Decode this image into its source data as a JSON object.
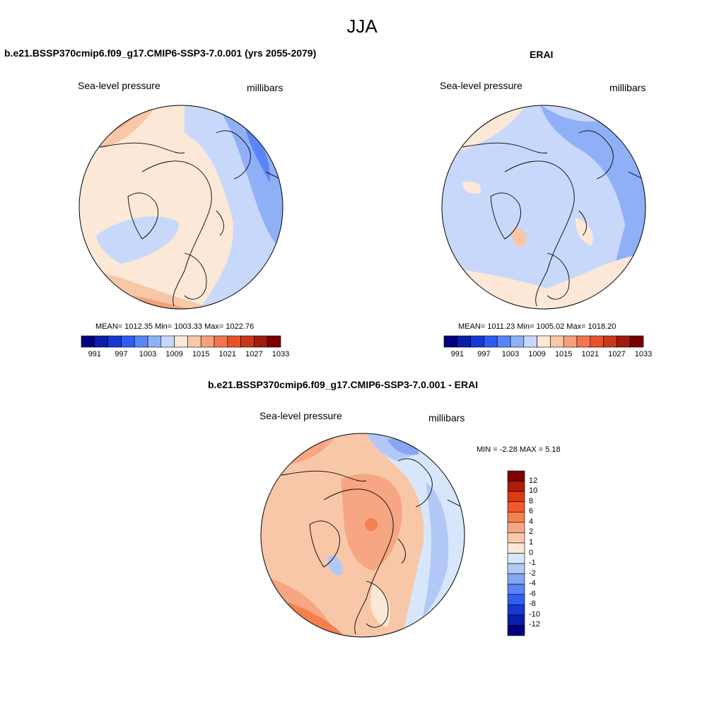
{
  "figure": {
    "title": "JJA"
  },
  "panels": [
    {
      "title": "b.e21.BSSP370cmip6.f09_g17.CMIP6-SSP3-7.0.001 (yrs 2055-2079)",
      "left_label": "Sea-level pressure",
      "right_label": "millibars",
      "stats": "MEAN= 1012.35  Min= 1003.33  Max= 1022.76"
    },
    {
      "title": "ERAI",
      "left_label": "Sea-level pressure",
      "right_label": "millibars",
      "stats": "MEAN= 1011.23  Min= 1005.02  Max= 1018.20"
    },
    {
      "title": "b.e21.BSSP370cmip6.f09_g17.CMIP6-SSP3-7.0.001 - ERAI",
      "left_label": "Sea-level pressure",
      "right_label": "millibars",
      "stats": "MIN =  -2.28 MAX =   5.18"
    }
  ],
  "colorbar_field": {
    "colors": [
      "#00007f",
      "#0a1ea8",
      "#1638d4",
      "#2f5cf0",
      "#5a86f5",
      "#8fb0f7",
      "#c7d8fa",
      "#fbe8d6",
      "#f8c7a8",
      "#f5a07c",
      "#f17650",
      "#e8522a",
      "#c8361b",
      "#a01b0f",
      "#7a0000"
    ],
    "tick_labels": [
      "991",
      "997",
      "1003",
      "1009",
      "1015",
      "1021",
      "1027",
      "1033"
    ]
  },
  "colorbar_diff": {
    "colors": [
      "#7f0000",
      "#b21a0c",
      "#de3a12",
      "#f3582a",
      "#f3804f",
      "#f6a683",
      "#f9caaf",
      "#fbe8d6",
      "#d8e6fb",
      "#b2c8f7",
      "#86a6f4",
      "#5a84f2",
      "#2f5ef0",
      "#1638d4",
      "#0a1ea8",
      "#00007f"
    ],
    "tick_labels": [
      "12",
      "10",
      "8",
      "6",
      "4",
      "2",
      "1",
      "0",
      "-1",
      "-2",
      "-4",
      "-6",
      "-8",
      "-10",
      "-12"
    ]
  }
}
